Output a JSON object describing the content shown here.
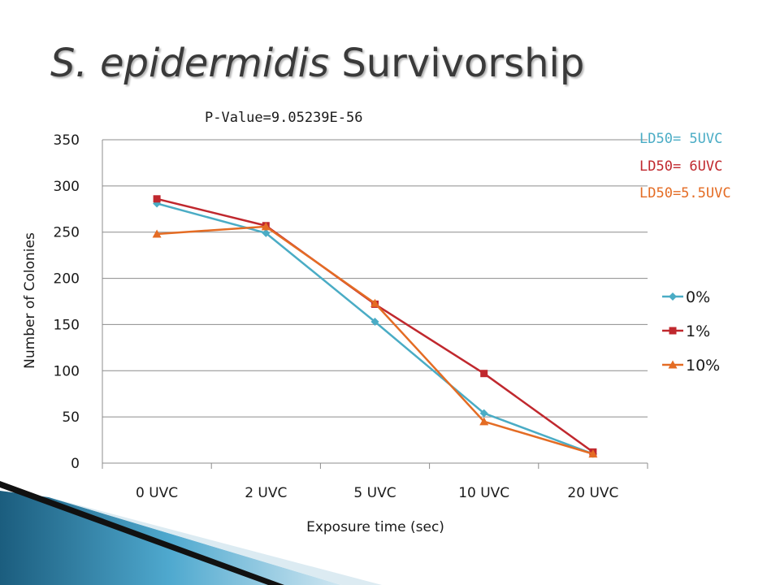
{
  "slide": {
    "title_italic": "S. epidermidis",
    "title_rest": "Survivorship"
  },
  "annotations": {
    "p_value": "P-Value=9.05239E-56",
    "ld50": [
      {
        "text": "LD50= 5UVC",
        "color": "#4aacc5"
      },
      {
        "text": "LD50= 6UVC",
        "color": "#c0282e"
      },
      {
        "text": "LD50=5.5UVC",
        "color": "#e46c24"
      }
    ]
  },
  "chart_data": {
    "type": "line",
    "title": "",
    "xlabel": "Exposure time (sec)",
    "ylabel": "Number of Colonies",
    "categories": [
      "0 UVC",
      "2 UVC",
      "5 UVC",
      "10 UVC",
      "20 UVC"
    ],
    "ylim": [
      0,
      350
    ],
    "yticks": [
      "0",
      "50",
      "100",
      "150",
      "200",
      "250",
      "300",
      "350"
    ],
    "grid": true,
    "legend_position": "right",
    "series": [
      {
        "name": "0%",
        "values": [
          281,
          249,
          153,
          54,
          10
        ],
        "color": "#4aacc5",
        "marker": "diamond"
      },
      {
        "name": "1%",
        "values": [
          286,
          257,
          172,
          97,
          12
        ],
        "color": "#c0282e",
        "marker": "square"
      },
      {
        "name": "10%",
        "values": [
          248,
          256,
          173,
          45,
          10
        ],
        "color": "#e46c24",
        "marker": "triangle"
      }
    ]
  }
}
